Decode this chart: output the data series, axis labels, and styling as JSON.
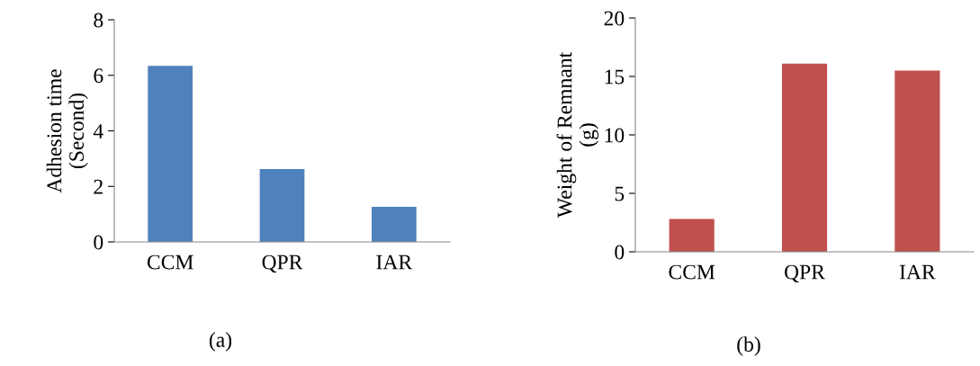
{
  "chart_data": [
    {
      "type": "bar",
      "ylabel": "Adhesion time\n(Second)",
      "categories": [
        "CCM",
        "QPR",
        "IAR"
      ],
      "values": [
        6.34,
        2.62,
        1.26
      ],
      "color": "#4f81bd",
      "ylim": [
        0,
        8
      ],
      "yticks": [
        0,
        2,
        4,
        6,
        8
      ],
      "grid": false,
      "legend": false,
      "annotations": [
        "(a)"
      ]
    },
    {
      "type": "bar",
      "ylabel": "Weight of Remnant\n(g)",
      "categories": [
        "CCM",
        "QPR",
        "IAR"
      ],
      "values": [
        2.8,
        16.1,
        15.5
      ],
      "color": "#c0504d",
      "ylim": [
        0,
        20
      ],
      "yticks": [
        0,
        5,
        10,
        15,
        20
      ],
      "grid": false,
      "legend": false,
      "annotations": [
        "(b)"
      ]
    }
  ]
}
